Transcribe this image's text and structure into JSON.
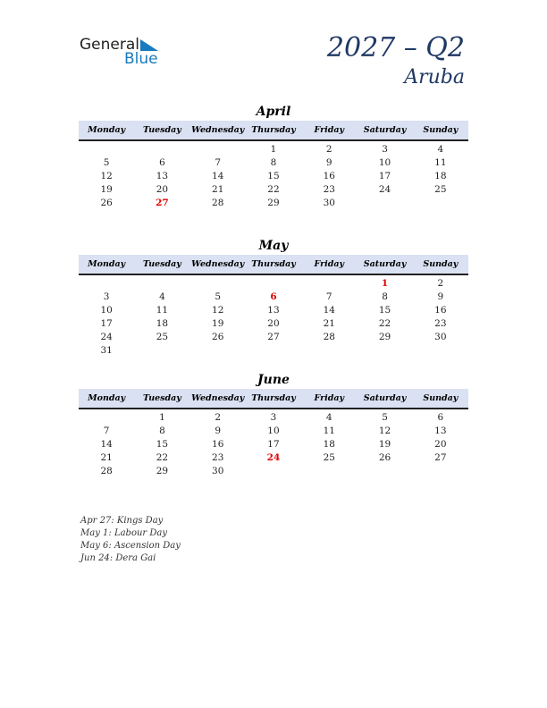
{
  "logo": {
    "text1": "General",
    "text2": "Blue"
  },
  "header": {
    "title": "2027 – Q2",
    "country": "Aruba"
  },
  "weekdays": [
    "Monday",
    "Tuesday",
    "Wednesday",
    "Thursday",
    "Friday",
    "Saturday",
    "Sunday"
  ],
  "colors": {
    "accent": "#1f3864",
    "header_bg": "#d9e1f2",
    "holiday": "#e00000"
  },
  "months": [
    {
      "name": "April",
      "weeks": [
        [
          "",
          "",
          "",
          "1",
          "2",
          "3",
          "4"
        ],
        [
          "5",
          "6",
          "7",
          "8",
          "9",
          "10",
          "11"
        ],
        [
          "12",
          "13",
          "14",
          "15",
          "16",
          "17",
          "18"
        ],
        [
          "19",
          "20",
          "21",
          "22",
          "23",
          "24",
          "25"
        ],
        [
          "26",
          "27",
          "28",
          "29",
          "30",
          "",
          ""
        ]
      ],
      "holidays": [
        "27"
      ]
    },
    {
      "name": "May",
      "weeks": [
        [
          "",
          "",
          "",
          "",
          "",
          "1",
          "2"
        ],
        [
          "3",
          "4",
          "5",
          "6",
          "7",
          "8",
          "9"
        ],
        [
          "10",
          "11",
          "12",
          "13",
          "14",
          "15",
          "16"
        ],
        [
          "17",
          "18",
          "19",
          "20",
          "21",
          "22",
          "23"
        ],
        [
          "24",
          "25",
          "26",
          "27",
          "28",
          "29",
          "30"
        ],
        [
          "31",
          "",
          "",
          "",
          "",
          "",
          ""
        ]
      ],
      "holidays": [
        "1",
        "6"
      ]
    },
    {
      "name": "June",
      "weeks": [
        [
          "",
          "1",
          "2",
          "3",
          "4",
          "5",
          "6"
        ],
        [
          "7",
          "8",
          "9",
          "10",
          "11",
          "12",
          "13"
        ],
        [
          "14",
          "15",
          "16",
          "17",
          "18",
          "19",
          "20"
        ],
        [
          "21",
          "22",
          "23",
          "24",
          "25",
          "26",
          "27"
        ],
        [
          "28",
          "29",
          "30",
          "",
          "",
          "",
          ""
        ]
      ],
      "holidays": [
        "24"
      ]
    }
  ],
  "holiday_notes": [
    "Apr 27: Kings Day",
    "May 1: Labour Day",
    "May 6: Ascension Day",
    "Jun 24: Dera Gai"
  ]
}
